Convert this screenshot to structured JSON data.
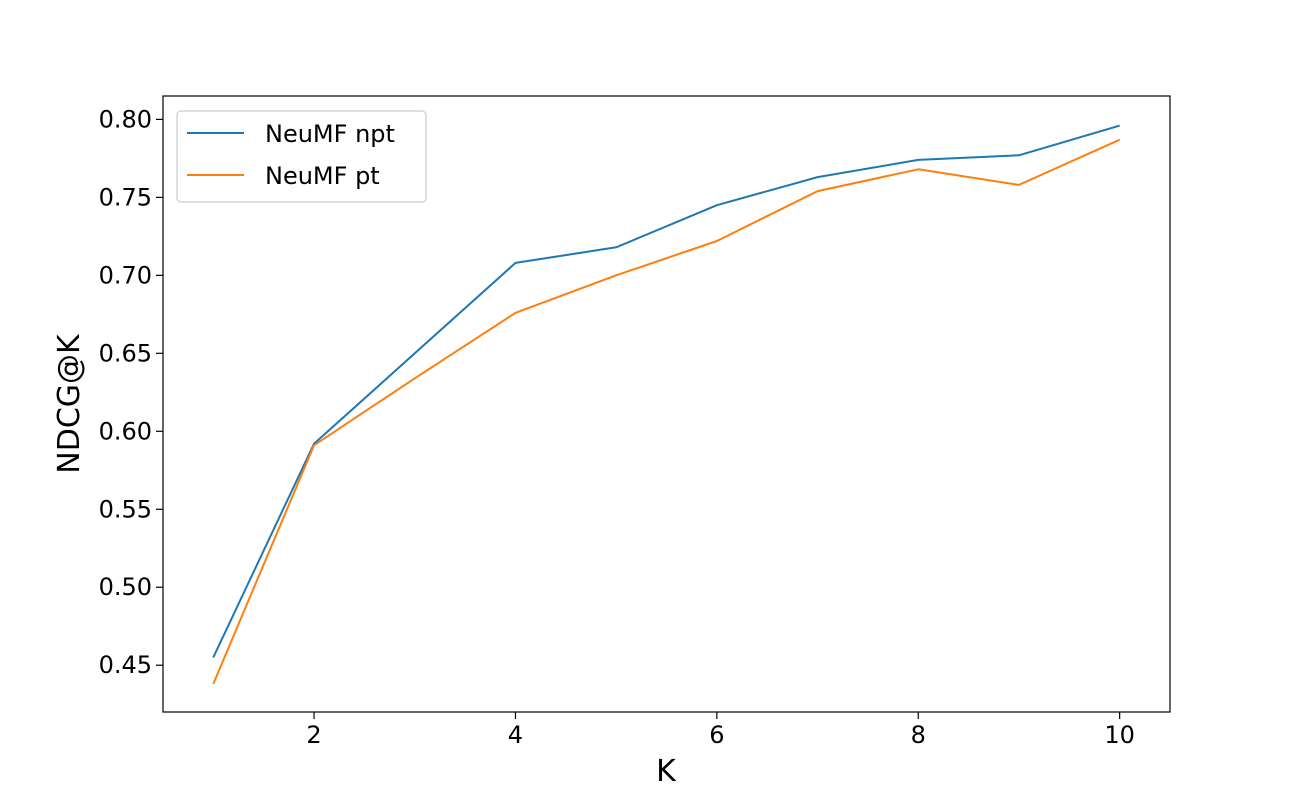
{
  "chart_data": {
    "type": "line",
    "title": "",
    "xlabel": "K",
    "ylabel": "NDCG@K",
    "xlim": [
      0.5,
      10.5
    ],
    "ylim": [
      0.42,
      0.815
    ],
    "xticks": [
      2,
      4,
      6,
      8,
      10
    ],
    "yticks": [
      0.45,
      0.5,
      0.55,
      0.6,
      0.65,
      0.7,
      0.75,
      0.8
    ],
    "x": [
      1,
      2,
      3,
      4,
      5,
      6,
      7,
      8,
      9,
      10
    ],
    "grid": false,
    "legend_position": "top-left",
    "series": [
      {
        "name": "NeuMF npt",
        "color": "#1f77b4",
        "values": [
          0.455,
          0.592,
          0.65,
          0.708,
          0.718,
          0.745,
          0.763,
          0.774,
          0.777,
          0.796
        ]
      },
      {
        "name": "NeuMF pt",
        "color": "#ff7f0e",
        "values": [
          0.438,
          0.591,
          0.634,
          0.676,
          0.7,
          0.722,
          0.754,
          0.768,
          0.758,
          0.787
        ]
      }
    ]
  }
}
